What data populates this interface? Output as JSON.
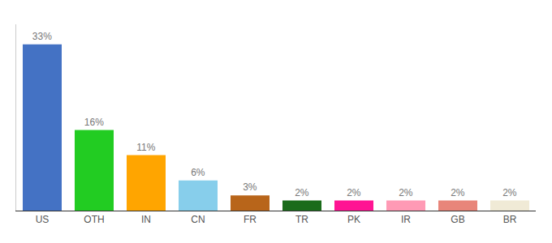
{
  "chart_data": {
    "type": "bar",
    "categories": [
      "US",
      "OTH",
      "IN",
      "CN",
      "FR",
      "TR",
      "PK",
      "IR",
      "GB",
      "BR"
    ],
    "values": [
      33,
      16,
      11,
      6,
      3,
      2,
      2,
      2,
      2,
      2
    ],
    "value_labels": [
      "33%",
      "16%",
      "11%",
      "6%",
      "3%",
      "2%",
      "2%",
      "2%",
      "2%",
      "2%"
    ],
    "data_labels": true,
    "colors": [
      "#4472c4",
      "#22cc22",
      "#ffa500",
      "#87ceeb",
      "#b8651a",
      "#1a6b1a",
      "#ff1493",
      "#ff9ab5",
      "#e8857a",
      "#f0ead6"
    ],
    "ylim": [
      0,
      37
    ],
    "grid": false,
    "tick_labels": "x"
  }
}
